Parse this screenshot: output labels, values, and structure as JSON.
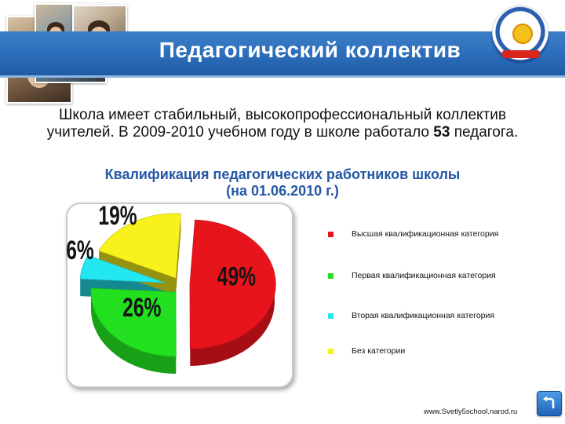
{
  "header": {
    "title": "Педагогический коллектив"
  },
  "intro": {
    "line1": "Школа имеет стабильный, высокопрофессиональный коллектив",
    "line2_before": "учителей. В 2009-2010 учебном году в школе работало ",
    "line2_number": "53",
    "line2_after": " педагога."
  },
  "chart_data": {
    "type": "pie",
    "title": "Квалификация педагогических работников школы",
    "subtitle": "(на 01.06.2010 г.)",
    "categories": [
      "Высшая квалификационная категория",
      "Первая квалификационная категория",
      "Вторая квалификационная категория",
      "Без категории"
    ],
    "values": [
      49,
      26,
      6,
      19
    ],
    "labels": [
      "49%",
      "26%",
      "6%",
      "19%"
    ],
    "colors": [
      "#e8141c",
      "#22e020",
      "#22e6f0",
      "#f8f21c"
    ],
    "legend_position": "right"
  },
  "footer": {
    "url": "www.Svetly5school.narod.ru"
  },
  "icons": {
    "back": "back-arrow-icon",
    "emblem": "school-emblem-icon"
  }
}
